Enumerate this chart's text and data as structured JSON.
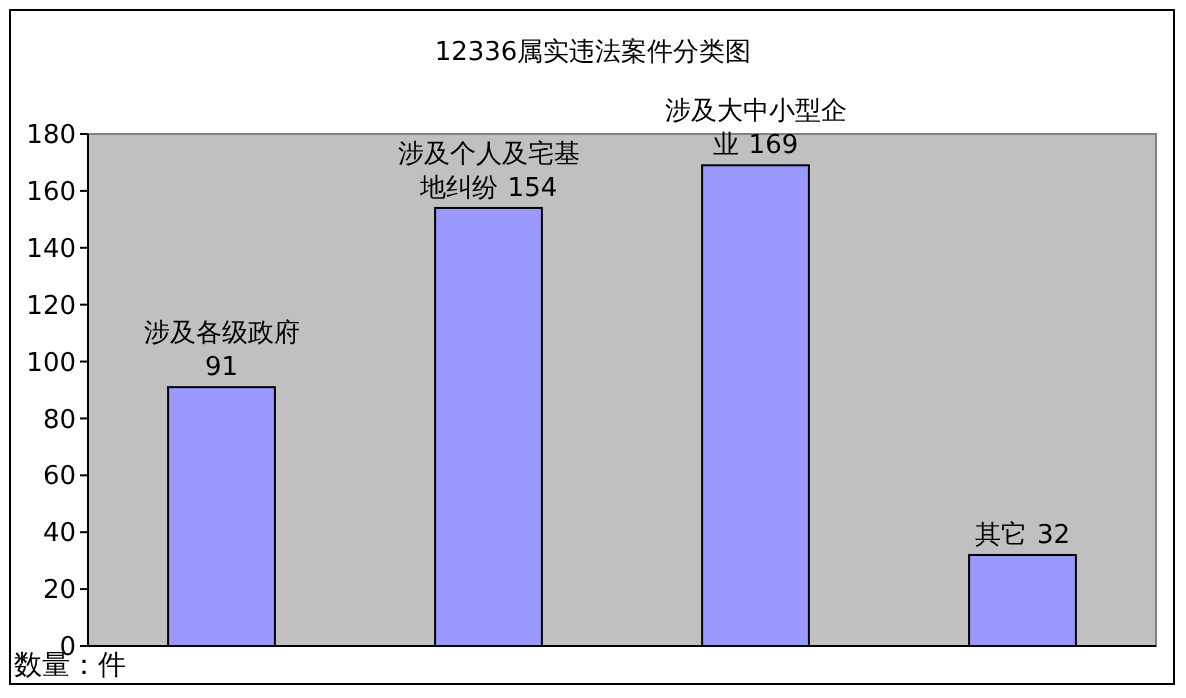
{
  "chart_data": {
    "type": "bar",
    "title": "12336属实违法案件分类图",
    "ylabel": "数量：件",
    "categories": [
      "涉及各级政府",
      "涉及个人及宅基地纠纷",
      "涉及大中小型企业",
      "其它"
    ],
    "values": [
      91,
      154,
      169,
      32
    ],
    "color": "#9999ff",
    "data_labels": true,
    "ylim": [
      0,
      180
    ],
    "yticks": [
      0,
      20,
      40,
      60,
      80,
      100,
      120,
      140,
      160,
      180
    ],
    "grid": false
  }
}
